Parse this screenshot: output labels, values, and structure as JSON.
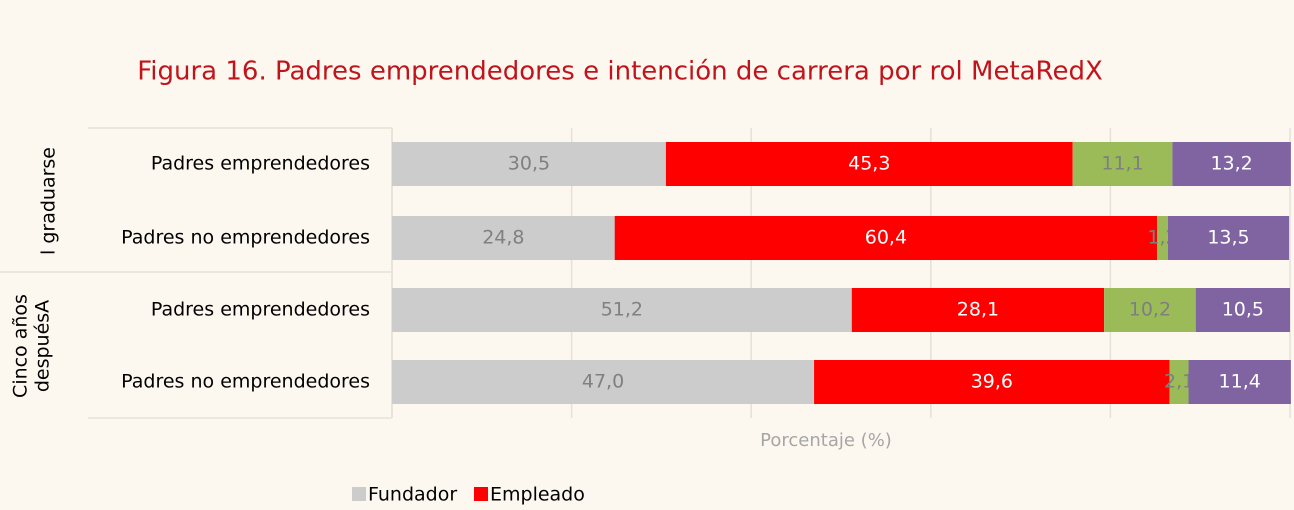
{
  "chart_data": {
    "type": "stacked-bar-horizontal",
    "title": "Figura 16.  Padres emprendedores e intención de carrera por rol MetaRedX",
    "categories": [
      "Padres emprendedores",
      "Padres no emprendedores",
      "Padres emprendedores",
      "Padres no emprendedores"
    ],
    "groups": [
      [
        "l graduarse"
      ],
      [
        "Cinco años",
        "despuésA"
      ]
    ],
    "xlabel": "Porcentaje (%)",
    "xlim": [
      0,
      100
    ],
    "xticks": [
      0,
      20,
      40,
      60,
      80,
      100
    ],
    "grid": true,
    "legend": "bottom",
    "series": [
      {
        "name": "Fundador",
        "color": "#cccccc",
        "label_color": "#808080",
        "values": [
          30.5,
          24.8,
          51.2,
          47.0
        ],
        "value_labels": [
          "30,5",
          "24,8",
          "51,2",
          "47,0"
        ]
      },
      {
        "name": "Empleado",
        "color": "#ff0000",
        "label_color": "#ffffff",
        "values": [
          45.3,
          60.4,
          28.1,
          39.6
        ],
        "value_labels": [
          "45,3",
          "60,4",
          "28,1",
          "39,6"
        ]
      },
      {
        "color": "#9bbb59",
        "label_color": "#7f7f7f",
        "values": [
          11.1,
          1.2,
          10.2,
          2.1
        ],
        "value_labels": [
          "11,1",
          "1,2",
          "10,2",
          "2,1"
        ]
      },
      {
        "color": "#8064a2",
        "label_color": "#ffffff",
        "values": [
          13.2,
          13.5,
          10.5,
          11.4
        ],
        "value_labels": [
          "13,2",
          "13,5",
          "10,5",
          "11,4"
        ]
      }
    ]
  }
}
